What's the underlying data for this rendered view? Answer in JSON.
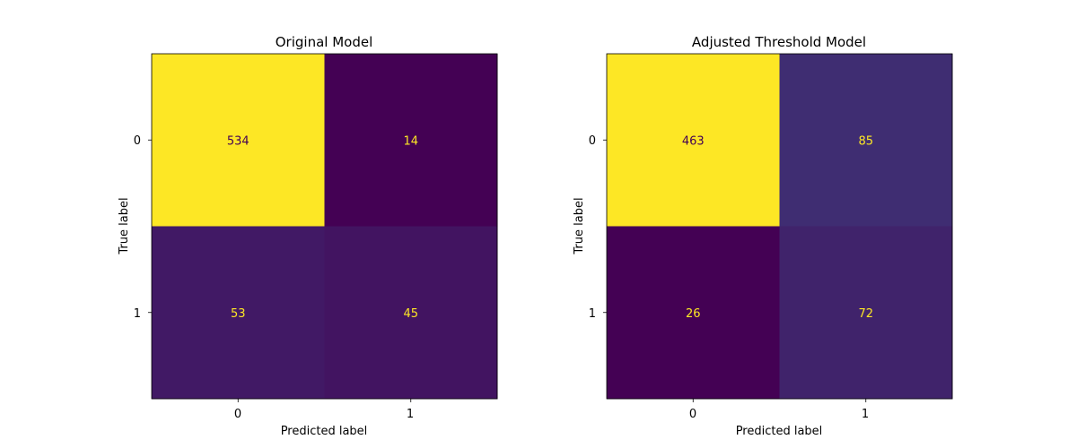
{
  "chart_data": [
    {
      "type": "heatmap",
      "title": "Original Model",
      "xlabel": "Predicted label",
      "ylabel": "True label",
      "x_tick_labels": [
        "0",
        "1"
      ],
      "y_tick_labels": [
        "0",
        "1"
      ],
      "matrix": [
        [
          534,
          14
        ],
        [
          53,
          45
        ]
      ],
      "colormap": "viridis",
      "grid": false
    },
    {
      "type": "heatmap",
      "title": "Adjusted Threshold Model",
      "xlabel": "Predicted label",
      "ylabel": "True label",
      "x_tick_labels": [
        "0",
        "1"
      ],
      "y_tick_labels": [
        "0",
        "1"
      ],
      "matrix": [
        [
          463,
          85
        ],
        [
          26,
          72
        ]
      ],
      "colormap": "viridis",
      "grid": false
    }
  ],
  "colors": {
    "viridis_low": "#440154",
    "viridis_high": "#fde725",
    "text_on_dark": "#fde725",
    "text_on_light": "#440154"
  }
}
